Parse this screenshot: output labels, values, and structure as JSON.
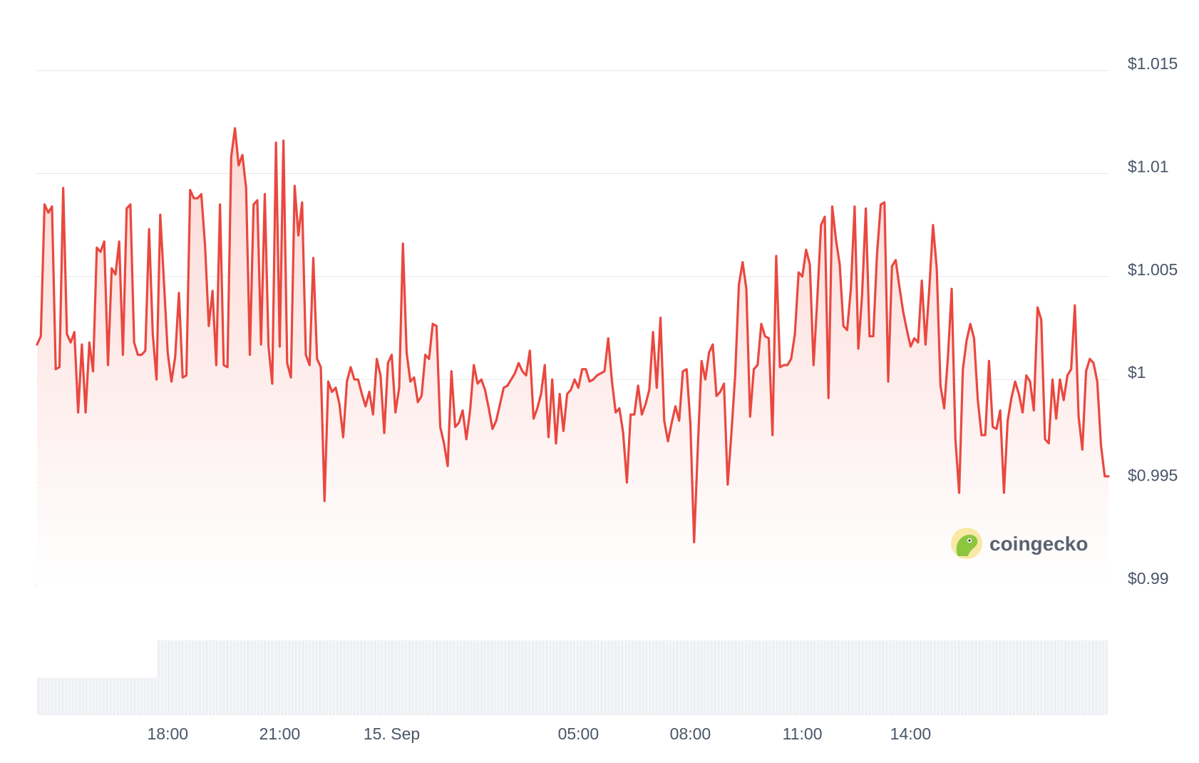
{
  "chart_data": {
    "type": "line",
    "title": "",
    "xlabel": "",
    "ylabel": "",
    "ylim": [
      0.9885,
      1.016
    ],
    "y_ticks": [
      {
        "value": 1.015,
        "label": "$1.015"
      },
      {
        "value": 1.01,
        "label": "$1.01"
      },
      {
        "value": 1.005,
        "label": "$1.005"
      },
      {
        "value": 1.0,
        "label": "$1"
      },
      {
        "value": 0.995,
        "label": "$0.995"
      },
      {
        "value": 0.99,
        "label": "$0.99"
      }
    ],
    "x_ticks": [
      "18:00",
      "21:00",
      "15. Sep",
      "05:00",
      "08:00",
      "11:00",
      "14:00"
    ],
    "x_tick_index": [
      35,
      65,
      95,
      145,
      175,
      205,
      234
    ],
    "grid": "horizontal",
    "legend": "none",
    "colors": {
      "line": "#e9483f",
      "fill_top": "#fbd5d2",
      "fill_bottom": "#ffffff",
      "volume": "#eef0f4",
      "grid": "#e8eaed"
    },
    "series": [
      {
        "values": [
          1.0017,
          1.0021,
          1.0085,
          1.0081,
          1.0084,
          1.0005,
          1.0006,
          1.0093,
          1.0022,
          1.0018,
          1.0023,
          0.9984,
          1.0017,
          0.9984,
          1.0018,
          1.0004,
          1.0064,
          1.0062,
          1.0067,
          1.0007,
          1.0054,
          1.0051,
          1.0067,
          1.0012,
          1.0083,
          1.0085,
          1.0018,
          1.0012,
          1.0012,
          1.0014,
          1.0073,
          1.0022,
          1.0,
          1.008,
          1.0047,
          1.0013,
          0.9999,
          1.0011,
          1.0042,
          1.0001,
          1.0002,
          1.0092,
          1.0088,
          1.0088,
          1.009,
          1.0065,
          1.0026,
          1.0043,
          1.0007,
          1.0085,
          1.0007,
          1.0006,
          1.0108,
          1.0122,
          1.0104,
          1.0109,
          1.0093,
          1.0012,
          1.0085,
          1.0087,
          1.0017,
          1.009,
          1.0016,
          0.9998,
          1.0115,
          1.0016,
          1.0116,
          1.0008,
          1.0001,
          1.0094,
          1.007,
          1.0086,
          1.0012,
          1.0007,
          1.0059,
          1.001,
          1.0006,
          0.9941,
          0.9999,
          0.9994,
          0.9996,
          0.9988,
          0.9972,
          0.9999,
          1.0006,
          1.0,
          1.0,
          0.9993,
          0.9987,
          0.9994,
          0.9983,
          1.001,
          1.0002,
          0.9974,
          1.0008,
          1.0012,
          0.9984,
          0.9996,
          1.0066,
          1.0013,
          0.9999,
          1.0001,
          0.9989,
          0.9992,
          1.0012,
          1.001,
          1.0027,
          1.0026,
          0.9977,
          0.9969,
          0.9958,
          1.0004,
          0.9977,
          0.9979,
          0.9985,
          0.9971,
          0.9985,
          1.0007,
          0.9998,
          1.0,
          0.9995,
          0.9986,
          0.9976,
          0.998,
          0.9988,
          0.9996,
          0.9997,
          1.0,
          1.0003,
          1.0008,
          1.0004,
          1.0002,
          1.0014,
          0.9981,
          0.9986,
          0.9993,
          1.0007,
          0.9972,
          1.0,
          0.9969,
          0.9993,
          0.9975,
          0.9993,
          0.9995,
          1.0,
          0.9996,
          1.0005,
          1.0005,
          0.9999,
          1.0,
          1.0002,
          1.0003,
          1.0004,
          1.002,
          0.9999,
          0.9984,
          0.9986,
          0.9974,
          0.995,
          0.9983,
          0.9983,
          0.9997,
          0.9983,
          0.9988,
          0.9995,
          1.0023,
          0.9996,
          1.003,
          0.998,
          0.997,
          0.9979,
          0.9987,
          0.998,
          1.0004,
          1.0005,
          0.9979,
          0.9921,
          0.9967,
          1.0009,
          1.0,
          1.0013,
          1.0017,
          0.9992,
          0.9994,
          0.9998,
          0.9949,
          0.9974,
          1.0002,
          1.0046,
          1.0057,
          1.0044,
          0.9982,
          1.0005,
          1.0007,
          1.0027,
          1.0021,
          1.002,
          0.9973,
          1.006,
          1.0006,
          1.0007,
          1.0007,
          1.001,
          1.0022,
          1.0052,
          1.005,
          1.0063,
          1.0056,
          1.0007,
          1.0039,
          1.0075,
          1.0079,
          0.9991,
          1.0084,
          1.0068,
          1.0056,
          1.0026,
          1.0024,
          1.0044,
          1.0084,
          1.0015,
          1.0041,
          1.0083,
          1.0021,
          1.0021,
          1.0061,
          1.0085,
          1.0086,
          0.9999,
          1.0055,
          1.0058,
          1.0045,
          1.0033,
          1.0024,
          1.0016,
          1.002,
          1.0018,
          1.0048,
          1.0017,
          1.0044,
          1.0075,
          1.0054,
          0.9997,
          0.9986,
          1.0011,
          1.0044,
          0.9971,
          0.9945,
          1.0005,
          1.0019,
          1.0027,
          1.002,
          0.999,
          0.9973,
          0.9973,
          1.0009,
          0.9977,
          0.9976,
          0.9985,
          0.9945,
          0.998,
          0.9991,
          0.9999,
          0.9993,
          0.9984,
          1.0002,
          0.9999,
          0.9985,
          1.0035,
          1.0029,
          0.9971,
          0.9969,
          1.0,
          0.9981,
          1.0,
          0.999,
          1.0002,
          1.0005,
          1.0036,
          0.9982,
          0.9966,
          1.0004,
          1.001,
          1.0008,
          0.9999,
          0.9968,
          0.9953,
          0.9953
        ]
      }
    ],
    "volume": {
      "values": [
        1,
        1,
        1,
        1,
        1,
        1,
        1,
        1,
        1,
        1,
        1,
        1,
        1,
        1,
        1,
        1,
        1,
        1,
        1,
        1,
        1,
        1,
        1,
        1,
        1,
        1,
        1,
        1,
        1,
        1,
        1,
        1,
        1,
        1,
        1,
        2,
        2,
        2,
        2,
        2,
        2,
        2,
        2,
        2,
        2,
        2,
        2,
        2,
        2,
        2,
        2,
        2,
        2,
        2,
        2,
        2,
        2,
        2,
        2,
        2,
        2,
        2,
        2,
        2,
        2,
        2,
        2,
        2,
        2,
        2,
        2,
        2,
        2,
        2,
        2,
        2,
        2,
        2,
        2,
        2,
        2,
        2,
        2,
        2,
        2,
        2,
        2,
        2,
        2,
        2,
        2,
        2,
        2,
        2,
        2,
        2,
        2,
        2,
        2,
        2,
        2,
        2,
        2,
        2,
        2,
        2,
        2,
        2,
        2,
        2,
        2,
        2,
        2,
        2,
        2,
        2,
        2,
        2,
        2,
        2,
        2,
        2,
        2,
        2,
        2,
        2,
        2,
        2,
        2,
        2,
        2,
        2,
        2,
        2,
        2,
        2,
        2,
        2,
        2,
        2,
        2,
        2,
        2,
        2,
        2,
        2,
        2,
        2,
        2,
        2,
        2,
        2,
        2,
        2,
        2,
        2,
        2,
        2,
        2,
        2,
        2,
        2,
        2,
        2,
        2,
        2,
        2,
        2,
        2,
        2,
        2,
        2,
        2,
        2,
        2,
        2,
        2,
        2,
        2,
        2,
        2,
        2,
        2,
        2,
        2,
        2,
        2,
        2,
        2,
        2,
        2,
        2,
        2,
        2,
        2,
        2,
        2,
        2,
        2,
        2,
        2,
        2,
        2,
        2,
        2,
        2,
        2,
        2,
        2,
        2,
        2,
        2,
        2,
        2,
        2,
        2,
        2,
        2,
        2,
        2,
        2,
        2,
        2,
        2,
        2,
        2,
        2,
        2,
        2,
        2,
        2,
        2,
        2,
        2,
        2,
        2,
        2,
        2,
        2,
        2,
        2,
        2,
        2,
        2,
        2,
        2,
        2,
        2,
        2,
        2,
        2,
        2,
        2,
        2,
        2,
        2,
        2,
        2,
        2,
        2,
        2,
        2,
        2,
        2,
        2,
        2,
        2,
        2,
        2,
        2,
        2,
        2,
        2,
        2,
        2,
        2,
        2,
        2,
        2,
        2,
        2,
        2,
        2,
        2,
        2,
        2,
        2,
        2,
        2,
        2,
        2,
        2,
        2,
        2,
        2,
        2,
        2,
        2,
        2,
        2,
        2,
        2,
        2,
        2,
        2,
        2,
        2,
        2,
        2,
        2,
        2,
        2
      ]
    }
  },
  "branding": {
    "logo_text": "coingecko",
    "logo_icon": "gecko-logo-icon"
  }
}
